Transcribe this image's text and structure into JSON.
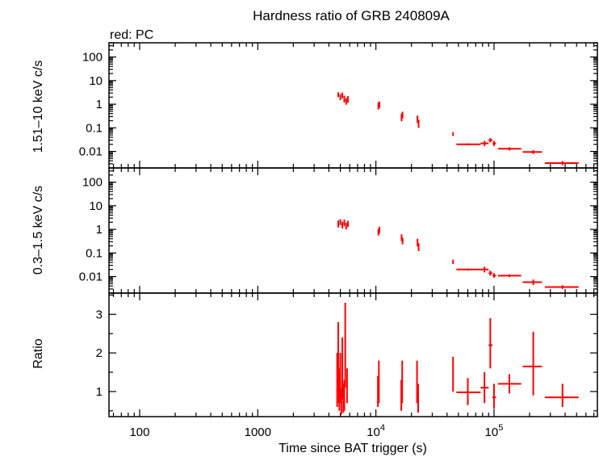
{
  "chart_data": [
    {
      "type": "scatter",
      "panel": "top",
      "title": "Hardness ratio of GRB 240809A",
      "subtitle": "red: PC",
      "xlabel": "",
      "ylabel": "1.51–10 keV c/s",
      "xscale": "log",
      "yscale": "log",
      "xlim": [
        55,
        750000
      ],
      "ylim": [
        0.002,
        400
      ],
      "yticks": [
        {
          "value": 100,
          "label": "100"
        },
        {
          "value": 10,
          "label": "10"
        },
        {
          "value": 1,
          "label": "1"
        },
        {
          "value": 0.1,
          "label": "0.1"
        },
        {
          "value": 0.01,
          "label": "0.01"
        }
      ],
      "color": "#ff0000",
      "points": [
        {
          "x": 4800,
          "xerr": [
            4750,
            4850
          ],
          "y": 2.6,
          "ylo": 2.0,
          "yhi": 3.2
        },
        {
          "x": 5000,
          "xerr": [
            4950,
            5050
          ],
          "y": 2.0,
          "ylo": 1.5,
          "yhi": 2.7
        },
        {
          "x": 5200,
          "xerr": [
            5150,
            5250
          ],
          "y": 2.4,
          "ylo": 1.8,
          "yhi": 3.1
        },
        {
          "x": 5400,
          "xerr": [
            5350,
            5450
          ],
          "y": 1.7,
          "ylo": 1.2,
          "yhi": 2.3
        },
        {
          "x": 5600,
          "xerr": [
            5550,
            5650
          ],
          "y": 1.3,
          "ylo": 0.95,
          "yhi": 1.8
        },
        {
          "x": 5800,
          "xerr": [
            5750,
            5850
          ],
          "y": 1.6,
          "ylo": 1.15,
          "yhi": 2.2
        },
        {
          "x": 10500,
          "xerr": [
            10400,
            10600
          ],
          "y": 0.85,
          "ylo": 0.6,
          "yhi": 1.2
        },
        {
          "x": 10700,
          "xerr": [
            10600,
            10800
          ],
          "y": 0.95,
          "ylo": 0.7,
          "yhi": 1.3
        },
        {
          "x": 16500,
          "xerr": [
            16300,
            16700
          ],
          "y": 0.28,
          "ylo": 0.19,
          "yhi": 0.4
        },
        {
          "x": 16800,
          "xerr": [
            16700,
            16900
          ],
          "y": 0.35,
          "ylo": 0.25,
          "yhi": 0.48
        },
        {
          "x": 22500,
          "xerr": [
            22300,
            22700
          ],
          "y": 0.23,
          "ylo": 0.16,
          "yhi": 0.33
        },
        {
          "x": 23000,
          "xerr": [
            22800,
            23200
          ],
          "y": 0.15,
          "ylo": 0.1,
          "yhi": 0.22
        },
        {
          "x": 45000,
          "xerr": [
            44500,
            45500
          ],
          "y": 0.055,
          "ylo": 0.045,
          "yhi": 0.066
        },
        {
          "x": 60000,
          "xerr": [
            48000,
            77000
          ],
          "y": 0.02,
          "ylo": 0.018,
          "yhi": 0.022
        },
        {
          "x": 83000,
          "xerr": [
            77000,
            90000
          ],
          "y": 0.022,
          "ylo": 0.017,
          "yhi": 0.028
        },
        {
          "x": 93000,
          "xerr": [
            90000,
            97000
          ],
          "y": 0.03,
          "ylo": 0.024,
          "yhi": 0.037
        },
        {
          "x": 100000,
          "xerr": [
            97000,
            104000
          ],
          "y": 0.022,
          "ylo": 0.017,
          "yhi": 0.028
        },
        {
          "x": 135000,
          "xerr": [
            108000,
            170000
          ],
          "y": 0.013,
          "ylo": 0.011,
          "yhi": 0.015
        },
        {
          "x": 215000,
          "xerr": [
            175000,
            255000
          ],
          "y": 0.0095,
          "ylo": 0.0078,
          "yhi": 0.0115
        },
        {
          "x": 380000,
          "xerr": [
            270000,
            520000
          ],
          "y": 0.0032,
          "ylo": 0.0026,
          "yhi": 0.0039
        }
      ]
    },
    {
      "type": "scatter",
      "panel": "middle",
      "xlabel": "",
      "ylabel": "0.3–1.5 keV c/s",
      "xscale": "log",
      "yscale": "log",
      "xlim": [
        55,
        750000
      ],
      "ylim": [
        0.002,
        400
      ],
      "yticks": [
        {
          "value": 100,
          "label": "100"
        },
        {
          "value": 10,
          "label": "10"
        },
        {
          "value": 1,
          "label": "1"
        },
        {
          "value": 0.1,
          "label": "0.1"
        },
        {
          "value": 0.01,
          "label": "0.01"
        }
      ],
      "color": "#ff0000",
      "points": [
        {
          "x": 4800,
          "xerr": [
            4750,
            4850
          ],
          "y": 1.7,
          "ylo": 1.2,
          "yhi": 2.4
        },
        {
          "x": 5000,
          "xerr": [
            4950,
            5050
          ],
          "y": 2.0,
          "ylo": 1.5,
          "yhi": 2.7
        },
        {
          "x": 5200,
          "xerr": [
            5150,
            5250
          ],
          "y": 1.5,
          "ylo": 1.1,
          "yhi": 2.1
        },
        {
          "x": 5400,
          "xerr": [
            5350,
            5450
          ],
          "y": 1.9,
          "ylo": 1.4,
          "yhi": 2.6
        },
        {
          "x": 5600,
          "xerr": [
            5550,
            5650
          ],
          "y": 1.4,
          "ylo": 1.0,
          "yhi": 1.9
        },
        {
          "x": 5800,
          "xerr": [
            5750,
            5850
          ],
          "y": 1.7,
          "ylo": 1.25,
          "yhi": 2.3
        },
        {
          "x": 10500,
          "xerr": [
            10400,
            10600
          ],
          "y": 0.75,
          "ylo": 0.55,
          "yhi": 1.05
        },
        {
          "x": 10700,
          "xerr": [
            10600,
            10800
          ],
          "y": 0.95,
          "ylo": 0.7,
          "yhi": 1.3
        },
        {
          "x": 16500,
          "xerr": [
            16300,
            16700
          ],
          "y": 0.45,
          "ylo": 0.32,
          "yhi": 0.62
        },
        {
          "x": 16800,
          "xerr": [
            16700,
            16900
          ],
          "y": 0.32,
          "ylo": 0.23,
          "yhi": 0.45
        },
        {
          "x": 22500,
          "xerr": [
            22300,
            22700
          ],
          "y": 0.28,
          "ylo": 0.19,
          "yhi": 0.4
        },
        {
          "x": 23000,
          "xerr": [
            22800,
            23200
          ],
          "y": 0.18,
          "ylo": 0.12,
          "yhi": 0.26
        },
        {
          "x": 45000,
          "xerr": [
            44500,
            45500
          ],
          "y": 0.042,
          "ylo": 0.034,
          "yhi": 0.052
        },
        {
          "x": 60000,
          "xerr": [
            48000,
            77000
          ],
          "y": 0.02,
          "ylo": 0.018,
          "yhi": 0.022
        },
        {
          "x": 83000,
          "xerr": [
            77000,
            90000
          ],
          "y": 0.02,
          "ylo": 0.015,
          "yhi": 0.026
        },
        {
          "x": 93000,
          "xerr": [
            90000,
            97000
          ],
          "y": 0.014,
          "ylo": 0.011,
          "yhi": 0.018
        },
        {
          "x": 100000,
          "xerr": [
            97000,
            104000
          ],
          "y": 0.011,
          "ylo": 0.009,
          "yhi": 0.014
        },
        {
          "x": 135000,
          "xerr": [
            108000,
            170000
          ],
          "y": 0.011,
          "ylo": 0.0095,
          "yhi": 0.0125
        },
        {
          "x": 215000,
          "xerr": [
            175000,
            255000
          ],
          "y": 0.0058,
          "ylo": 0.0044,
          "yhi": 0.0075
        },
        {
          "x": 380000,
          "xerr": [
            270000,
            520000
          ],
          "y": 0.0036,
          "ylo": 0.003,
          "yhi": 0.0043
        }
      ]
    },
    {
      "type": "scatter",
      "panel": "bottom",
      "xlabel": "Time since BAT trigger (s)",
      "ylabel": "Ratio",
      "xscale": "log",
      "yscale": "linear",
      "xlim": [
        55,
        750000
      ],
      "ylim": [
        0.35,
        3.55
      ],
      "xticks": [
        {
          "value": 100,
          "label": "100"
        },
        {
          "value": 1000,
          "label": "1000"
        },
        {
          "value": 10000,
          "label": "10",
          "sup": "4"
        },
        {
          "value": 100000,
          "label": "10",
          "sup": "5"
        }
      ],
      "yticks": [
        {
          "value": 1,
          "label": "1"
        },
        {
          "value": 2,
          "label": "2"
        },
        {
          "value": 3,
          "label": "3"
        }
      ],
      "color": "#ff0000",
      "points": [
        {
          "x": 4700,
          "xerr": [
            4650,
            4750
          ],
          "y": 1.3,
          "ylo": 0.6,
          "yhi": 2.0
        },
        {
          "x": 4800,
          "xerr": [
            4750,
            4850
          ],
          "y": 1.5,
          "ylo": 0.7,
          "yhi": 2.8
        },
        {
          "x": 4900,
          "xerr": [
            4850,
            4950
          ],
          "y": 1.0,
          "ylo": 0.5,
          "yhi": 1.6
        },
        {
          "x": 5000,
          "xerr": [
            4950,
            5050
          ],
          "y": 1.35,
          "ylo": 0.7,
          "yhi": 2.0
        },
        {
          "x": 5100,
          "xerr": [
            5050,
            5150
          ],
          "y": 0.7,
          "ylo": 0.4,
          "yhi": 1.1
        },
        {
          "x": 5200,
          "xerr": [
            5150,
            5250
          ],
          "y": 1.6,
          "ylo": 0.8,
          "yhi": 2.4
        },
        {
          "x": 5300,
          "xerr": [
            5250,
            5350
          ],
          "y": 0.8,
          "ylo": 0.45,
          "yhi": 1.2
        },
        {
          "x": 5400,
          "xerr": [
            5350,
            5450
          ],
          "y": 0.9,
          "ylo": 0.5,
          "yhi": 1.3
        },
        {
          "x": 5500,
          "xerr": [
            5450,
            5550
          ],
          "y": 2.2,
          "ylo": 1.1,
          "yhi": 3.3
        },
        {
          "x": 5700,
          "xerr": [
            5650,
            5750
          ],
          "y": 1.2,
          "ylo": 0.7,
          "yhi": 1.6
        },
        {
          "x": 10400,
          "xerr": [
            10300,
            10500
          ],
          "y": 1.0,
          "ylo": 0.6,
          "yhi": 1.4
        },
        {
          "x": 10600,
          "xerr": [
            10500,
            10700
          ],
          "y": 1.25,
          "ylo": 0.7,
          "yhi": 1.8
        },
        {
          "x": 16400,
          "xerr": [
            16300,
            16500
          ],
          "y": 0.9,
          "ylo": 0.5,
          "yhi": 1.3
        },
        {
          "x": 16700,
          "xerr": [
            16600,
            16800
          ],
          "y": 1.25,
          "ylo": 0.7,
          "yhi": 1.8
        },
        {
          "x": 22300,
          "xerr": [
            22200,
            22400
          ],
          "y": 1.25,
          "ylo": 0.7,
          "yhi": 1.8
        },
        {
          "x": 22800,
          "xerr": [
            22700,
            22900
          ],
          "y": 0.8,
          "ylo": 0.45,
          "yhi": 1.2
        },
        {
          "x": 45000,
          "xerr": [
            44500,
            45500
          ],
          "y": 1.45,
          "ylo": 1.0,
          "yhi": 1.9
        },
        {
          "x": 60000,
          "xerr": [
            48000,
            77000
          ],
          "y": 0.98,
          "ylo": 0.65,
          "yhi": 1.35
        },
        {
          "x": 83000,
          "xerr": [
            77000,
            90000
          ],
          "y": 1.1,
          "ylo": 0.7,
          "yhi": 1.5
        },
        {
          "x": 93000,
          "xerr": [
            90000,
            97000
          ],
          "y": 2.2,
          "ylo": 1.6,
          "yhi": 2.9
        },
        {
          "x": 100000,
          "xerr": [
            97000,
            104000
          ],
          "y": 0.85,
          "ylo": 0.55,
          "yhi": 1.2
        },
        {
          "x": 135000,
          "xerr": [
            108000,
            170000
          ],
          "y": 1.2,
          "ylo": 0.95,
          "yhi": 1.45
        },
        {
          "x": 215000,
          "xerr": [
            175000,
            255000
          ],
          "y": 1.65,
          "ylo": 0.9,
          "yhi": 2.55
        },
        {
          "x": 380000,
          "xerr": [
            270000,
            520000
          ],
          "y": 0.85,
          "ylo": 0.6,
          "yhi": 1.2
        }
      ]
    }
  ]
}
